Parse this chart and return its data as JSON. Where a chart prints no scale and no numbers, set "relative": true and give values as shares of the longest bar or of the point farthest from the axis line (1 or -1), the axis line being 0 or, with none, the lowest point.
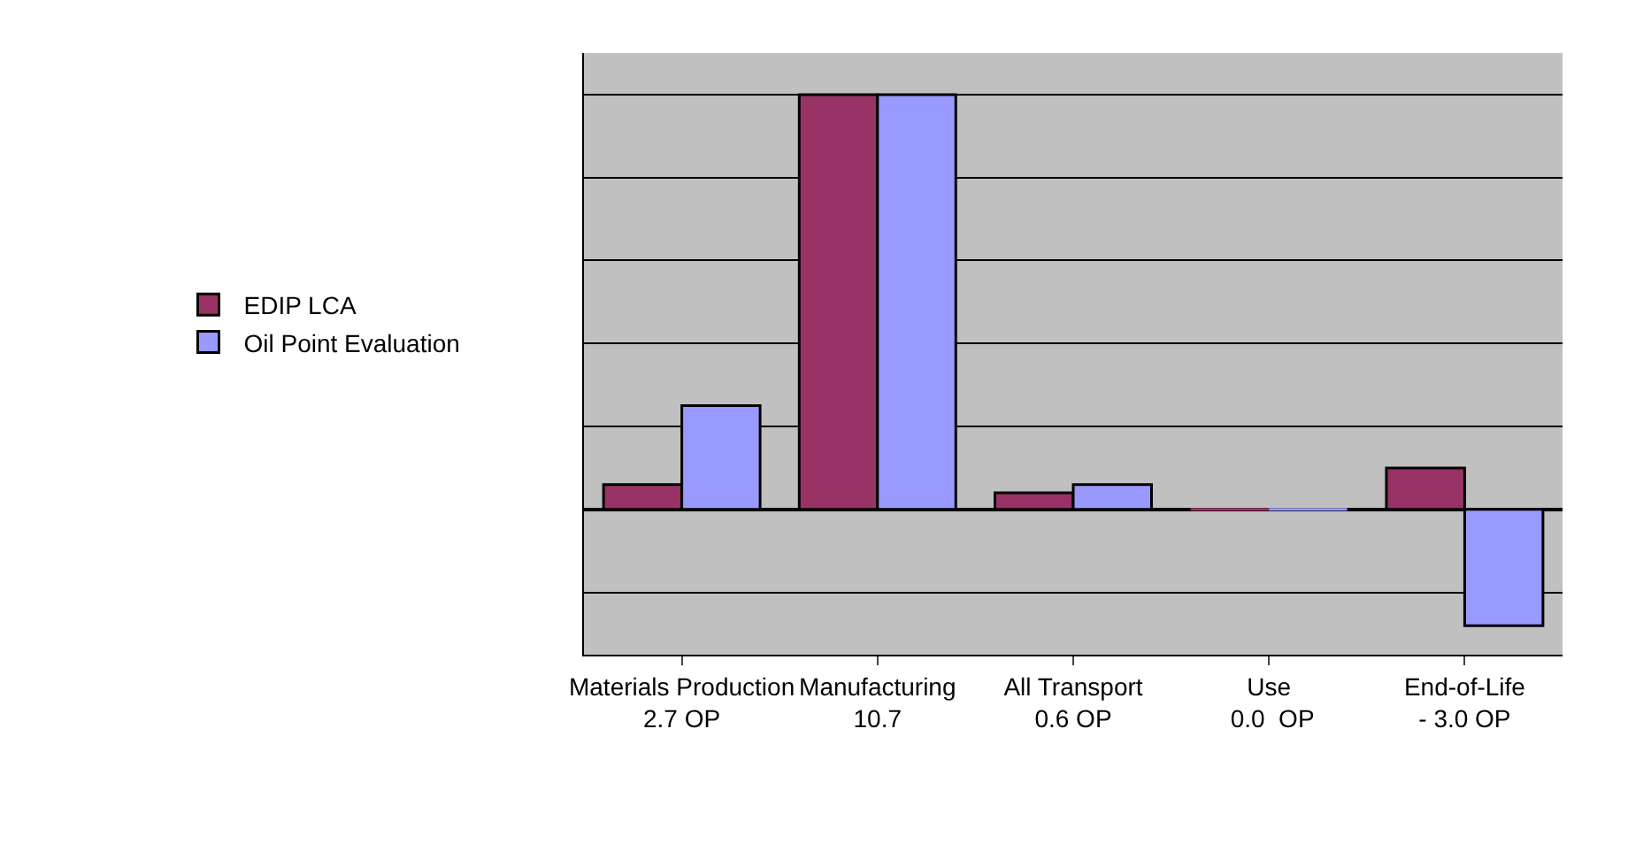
{
  "chart_data": {
    "type": "bar",
    "relative": true,
    "grid": "y",
    "legend": "left",
    "categories": [
      "Materials Production\n2.7 OP",
      "Manufacturing\n10.7",
      "All Transport\n0.6 OP",
      "Use\n 0.0  OP",
      "End-of-Life\n- 3.0 OP"
    ],
    "series": [
      {
        "name": "EDIP LCA",
        "color": "#993366",
        "values": [
          0.06,
          1.0,
          0.04,
          0.0,
          0.1
        ]
      },
      {
        "name": "Oil Point Evaluation",
        "color": "#9999ff",
        "values": [
          0.25,
          1.0,
          0.06,
          0.0,
          -0.28
        ]
      }
    ]
  }
}
